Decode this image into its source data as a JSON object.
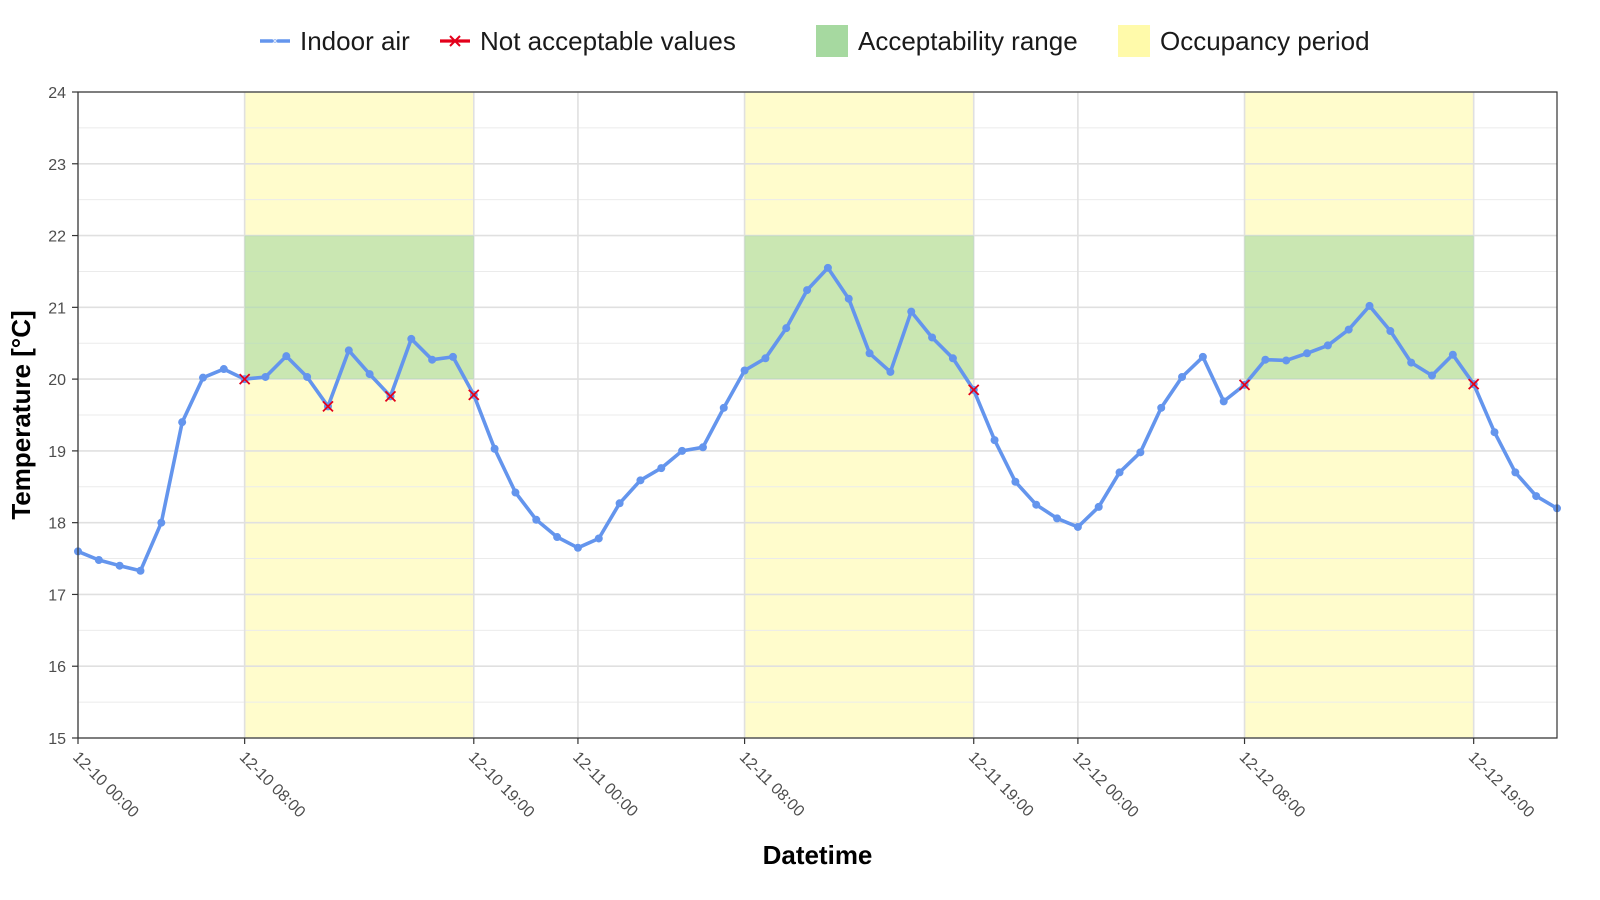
{
  "chart_data": {
    "type": "line",
    "xlabel": "Datetime",
    "ylabel": "Temperature [°C]",
    "ylim": [
      15,
      24
    ],
    "xlim_hours": [
      0,
      71
    ],
    "yticks": [
      15,
      16,
      17,
      18,
      19,
      20,
      21,
      22,
      23,
      24
    ],
    "xticks": [
      {
        "hour": 0,
        "label": "12-10 00:00"
      },
      {
        "hour": 8,
        "label": "12-10 08:00"
      },
      {
        "hour": 19,
        "label": "12-10 19:00"
      },
      {
        "hour": 24,
        "label": "12-11 00:00"
      },
      {
        "hour": 32,
        "label": "12-11 08:00"
      },
      {
        "hour": 43,
        "label": "12-11 19:00"
      },
      {
        "hour": 48,
        "label": "12-12 00:00"
      },
      {
        "hour": 56,
        "label": "12-12 08:00"
      },
      {
        "hour": 67,
        "label": "12-12 19:00"
      }
    ],
    "grid": true,
    "legend_position": "top",
    "legend": [
      {
        "label": "Indoor air",
        "kind": "line",
        "color": "#6495ed"
      },
      {
        "label": "Not acceptable values",
        "kind": "cross",
        "color": "#e3001b"
      },
      {
        "label": "Acceptability range",
        "kind": "fill",
        "color": "#a6d9a0"
      },
      {
        "label": "Occupancy period",
        "kind": "fill",
        "color": "#fffaaa"
      }
    ],
    "occupancy_periods": [
      [
        8,
        19
      ],
      [
        32,
        43
      ],
      [
        56,
        67
      ]
    ],
    "acceptability_range": [
      20,
      22
    ],
    "series": [
      {
        "name": "Indoor air",
        "color": "#6495ed",
        "x": [
          0,
          1,
          2,
          3,
          4,
          5,
          6,
          7,
          8,
          9,
          10,
          11,
          12,
          13,
          14,
          15,
          16,
          17,
          18,
          19,
          20,
          21,
          22,
          23,
          24,
          25,
          26,
          27,
          28,
          29,
          30,
          31,
          32,
          33,
          34,
          35,
          36,
          37,
          38,
          39,
          40,
          41,
          42,
          43,
          44,
          45,
          46,
          47,
          48,
          49,
          50,
          51,
          52,
          53,
          54,
          55,
          56,
          57,
          58,
          59,
          60,
          61,
          62,
          63,
          64,
          65,
          66,
          67,
          68,
          69,
          70,
          71
        ],
        "y": [
          17.6,
          17.48,
          17.4,
          17.33,
          18.0,
          19.4,
          20.02,
          20.14,
          20.0,
          20.03,
          20.32,
          20.03,
          19.62,
          20.4,
          20.07,
          19.76,
          20.56,
          20.27,
          20.31,
          19.78,
          19.03,
          18.42,
          18.04,
          17.8,
          17.65,
          17.78,
          18.27,
          18.59,
          18.76,
          19.0,
          19.05,
          19.6,
          20.12,
          20.29,
          20.71,
          21.24,
          21.55,
          21.12,
          20.36,
          20.1,
          20.94,
          20.58,
          20.29,
          19.85,
          19.15,
          18.57,
          18.25,
          18.06,
          17.94,
          18.22,
          18.7,
          18.98,
          19.6,
          20.03,
          20.31,
          19.69,
          19.92,
          20.27,
          20.26,
          20.36,
          20.47,
          20.69,
          21.02,
          20.67,
          20.23,
          20.05,
          20.34,
          19.93,
          19.26,
          18.7,
          18.37,
          18.2
        ]
      },
      {
        "name": "Not acceptable values",
        "color": "#e3001b",
        "x": [
          8,
          12,
          15,
          19,
          43,
          56,
          67
        ],
        "y": [
          20.0,
          19.62,
          19.76,
          19.78,
          19.85,
          19.92,
          19.93
        ]
      }
    ]
  }
}
